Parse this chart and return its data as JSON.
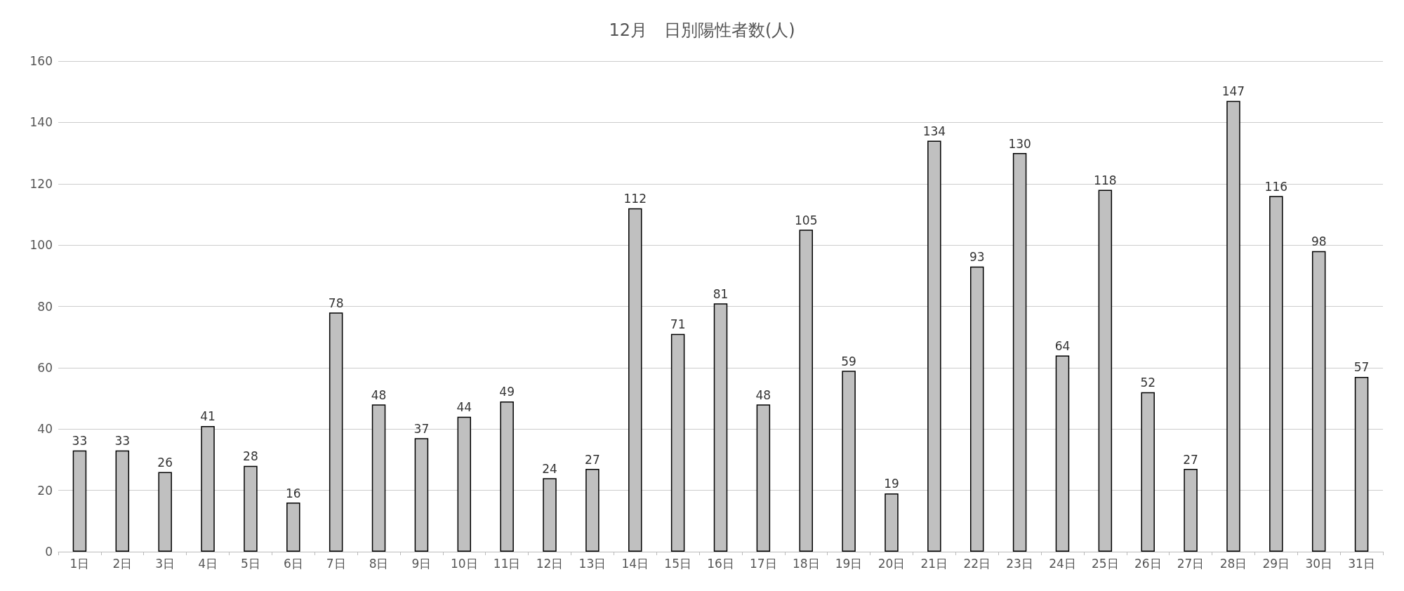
{
  "chart_data": {
    "type": "bar",
    "title": "12月　日別陽性者数(人)",
    "categories": [
      "1日",
      "2日",
      "3日",
      "4日",
      "5日",
      "6日",
      "7日",
      "8日",
      "9日",
      "10日",
      "11日",
      "12日",
      "13日",
      "14日",
      "15日",
      "16日",
      "17日",
      "18日",
      "19日",
      "20日",
      "21日",
      "22日",
      "23日",
      "24日",
      "25日",
      "26日",
      "27日",
      "28日",
      "29日",
      "30日",
      "31日"
    ],
    "values": [
      33,
      33,
      26,
      41,
      28,
      16,
      78,
      48,
      37,
      44,
      49,
      24,
      27,
      112,
      71,
      81,
      48,
      105,
      59,
      19,
      134,
      93,
      130,
      64,
      118,
      52,
      27,
      147,
      116,
      98,
      57
    ],
    "color": "#c0c0c0",
    "ylim": [
      0,
      160
    ],
    "yticks": [
      0,
      20,
      40,
      60,
      80,
      100,
      120,
      140,
      160
    ],
    "grid": "y",
    "data_labels": true
  }
}
